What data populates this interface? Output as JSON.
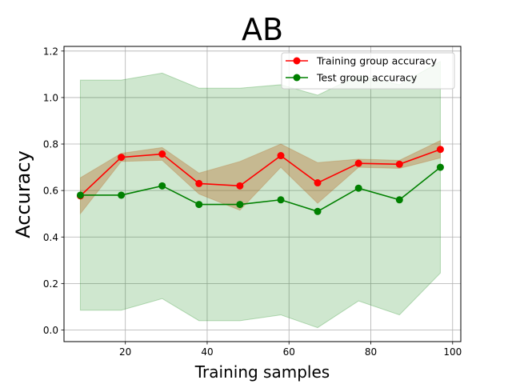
{
  "chart_data": {
    "type": "line",
    "title": "AB",
    "xlabel": "Training samples",
    "ylabel": "Accuracy",
    "xlim": [
      5,
      102
    ],
    "ylim": [
      -0.05,
      1.22
    ],
    "x_ticks": [
      20,
      40,
      60,
      80,
      100
    ],
    "y_ticks": [
      0.0,
      0.2,
      0.4,
      0.6,
      0.8,
      1.0,
      1.2
    ],
    "grid": true,
    "legend_position": "top-right",
    "x": [
      9,
      19,
      29,
      38,
      48,
      58,
      67,
      77,
      87,
      97
    ],
    "series": [
      {
        "name": "Training group accuracy",
        "color": "#ff0000",
        "band_color": "#b5651d",
        "values": [
          0.577,
          0.743,
          0.757,
          0.63,
          0.62,
          0.75,
          0.633,
          0.717,
          0.713,
          0.777
        ],
        "lower": [
          0.5,
          0.725,
          0.73,
          0.585,
          0.515,
          0.7,
          0.545,
          0.7,
          0.695,
          0.74
        ],
        "upper": [
          0.655,
          0.76,
          0.785,
          0.675,
          0.725,
          0.8,
          0.72,
          0.735,
          0.73,
          0.815
        ]
      },
      {
        "name": "Test group accuracy",
        "color": "#008000",
        "band_color": "#008000",
        "values": [
          0.58,
          0.58,
          0.62,
          0.54,
          0.54,
          0.56,
          0.51,
          0.61,
          0.56,
          0.7
        ],
        "lower": [
          0.085,
          0.085,
          0.135,
          0.04,
          0.04,
          0.065,
          0.01,
          0.125,
          0.065,
          0.245
        ],
        "upper": [
          1.075,
          1.075,
          1.105,
          1.04,
          1.04,
          1.055,
          1.01,
          1.095,
          1.055,
          1.155
        ]
      }
    ]
  }
}
